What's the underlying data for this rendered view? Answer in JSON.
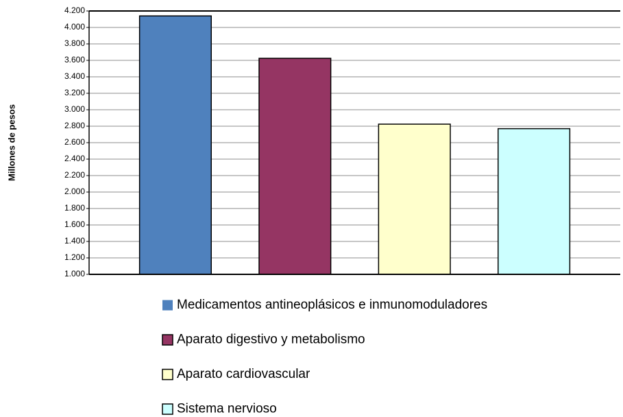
{
  "chart_data": {
    "type": "bar",
    "y_label": "Millones de pesos",
    "categories": [
      null
    ],
    "series": [
      {
        "name": "Medicamentos antineoplásicos e inmunomoduladores",
        "color": "#4f81bd",
        "values": [
          4140
        ]
      },
      {
        "name": "Aparato digestivo y metabolismo",
        "color": "#953563",
        "values": [
          3625
        ]
      },
      {
        "name": "Aparato cardiovascular",
        "color": "#ffffcc",
        "values": [
          2825
        ]
      },
      {
        "name": "Sistema nervioso",
        "color": "#ccffff",
        "values": [
          2770
        ]
      }
    ],
    "ylim": [
      1000,
      4200
    ],
    "yticks": [
      {
        "value": 1000,
        "label": "1.000"
      },
      {
        "value": 1200,
        "label": "1.200"
      },
      {
        "value": 1400,
        "label": "1.400"
      },
      {
        "value": 1600,
        "label": "1.600"
      },
      {
        "value": 1800,
        "label": "1.800"
      },
      {
        "value": 2000,
        "label": "2.000"
      },
      {
        "value": 2200,
        "label": "2.200"
      },
      {
        "value": 2400,
        "label": "2.400"
      },
      {
        "value": 2600,
        "label": "2.600"
      },
      {
        "value": 2800,
        "label": "2.800"
      },
      {
        "value": 3000,
        "label": "3.000"
      },
      {
        "value": 3200,
        "label": "3.200"
      },
      {
        "value": 3400,
        "label": "3.400"
      },
      {
        "value": 3600,
        "label": "3.600"
      },
      {
        "value": 3800,
        "label": "3.800"
      },
      {
        "value": 4000,
        "label": "4.000"
      },
      {
        "value": 4200,
        "label": "4.200"
      }
    ],
    "grid": true,
    "legend": "bottom"
  }
}
